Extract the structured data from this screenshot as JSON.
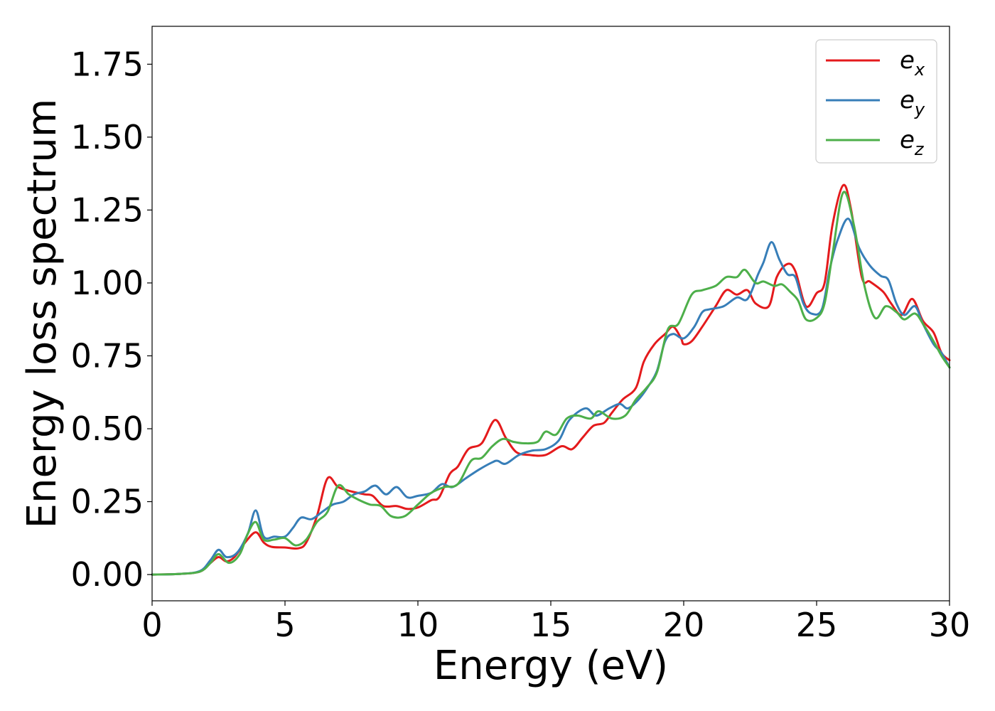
{
  "chart_data": {
    "type": "line",
    "xlabel": "Energy (eV)",
    "ylabel": "Energy loss spectrum",
    "xlim": [
      0,
      30
    ],
    "ylim": [
      -0.09,
      1.88
    ],
    "xticks": [
      0,
      5,
      10,
      15,
      20,
      25,
      30
    ],
    "xtick_labels": [
      "0",
      "5",
      "10",
      "15",
      "20",
      "25",
      "30"
    ],
    "yticks": [
      0.0,
      0.25,
      0.5,
      0.75,
      1.0,
      1.25,
      1.5,
      1.75
    ],
    "ytick_labels": [
      "0.00",
      "0.25",
      "0.50",
      "0.75",
      "1.00",
      "1.25",
      "1.50",
      "1.75"
    ],
    "grid": false,
    "legend_position": "top-right",
    "series": [
      {
        "name": "e_x",
        "label_base": "e",
        "label_sub": "x",
        "color": "#e41a1c",
        "points": [
          [
            0,
            0
          ],
          [
            1,
            0.002
          ],
          [
            1.8,
            0.01
          ],
          [
            2.2,
            0.04
          ],
          [
            2.5,
            0.06
          ],
          [
            2.8,
            0.045
          ],
          [
            3.1,
            0.06
          ],
          [
            3.5,
            0.11
          ],
          [
            3.9,
            0.145
          ],
          [
            4.2,
            0.11
          ],
          [
            4.5,
            0.095
          ],
          [
            5.0,
            0.093
          ],
          [
            5.5,
            0.09
          ],
          [
            5.8,
            0.11
          ],
          [
            6.2,
            0.2
          ],
          [
            6.6,
            0.33
          ],
          [
            7.0,
            0.3
          ],
          [
            7.5,
            0.285
          ],
          [
            8.0,
            0.275
          ],
          [
            8.3,
            0.27
          ],
          [
            8.7,
            0.235
          ],
          [
            9.2,
            0.235
          ],
          [
            9.6,
            0.225
          ],
          [
            10.0,
            0.23
          ],
          [
            10.5,
            0.255
          ],
          [
            10.8,
            0.265
          ],
          [
            11.2,
            0.345
          ],
          [
            11.5,
            0.37
          ],
          [
            11.9,
            0.43
          ],
          [
            12.4,
            0.45
          ],
          [
            12.9,
            0.53
          ],
          [
            13.3,
            0.47
          ],
          [
            13.7,
            0.42
          ],
          [
            14.2,
            0.41
          ],
          [
            14.8,
            0.41
          ],
          [
            15.4,
            0.44
          ],
          [
            15.8,
            0.43
          ],
          [
            16.2,
            0.47
          ],
          [
            16.6,
            0.51
          ],
          [
            17.0,
            0.52
          ],
          [
            17.3,
            0.555
          ],
          [
            17.7,
            0.6
          ],
          [
            18.2,
            0.64
          ],
          [
            18.5,
            0.73
          ],
          [
            18.9,
            0.79
          ],
          [
            19.3,
            0.825
          ],
          [
            19.6,
            0.85
          ],
          [
            19.9,
            0.81
          ],
          [
            20.0,
            0.79
          ],
          [
            20.3,
            0.8
          ],
          [
            20.7,
            0.85
          ],
          [
            21.2,
            0.92
          ],
          [
            21.6,
            0.975
          ],
          [
            22.0,
            0.96
          ],
          [
            22.4,
            0.975
          ],
          [
            22.7,
            0.93
          ],
          [
            23.2,
            0.92
          ],
          [
            23.5,
            1.02
          ],
          [
            23.9,
            1.065
          ],
          [
            24.2,
            1.04
          ],
          [
            24.6,
            0.92
          ],
          [
            25.0,
            0.965
          ],
          [
            25.3,
            1.0
          ],
          [
            25.6,
            1.2
          ],
          [
            26.0,
            1.335
          ],
          [
            26.3,
            1.25
          ],
          [
            26.7,
            1.02
          ],
          [
            27.0,
            1.005
          ],
          [
            27.5,
            0.97
          ],
          [
            27.8,
            0.93
          ],
          [
            28.2,
            0.89
          ],
          [
            28.6,
            0.945
          ],
          [
            29.0,
            0.87
          ],
          [
            29.4,
            0.83
          ],
          [
            29.7,
            0.76
          ],
          [
            30.0,
            0.735
          ]
        ]
      },
      {
        "name": "e_y",
        "label_base": "e",
        "label_sub": "y",
        "color": "#377eb8",
        "points": [
          [
            0,
            0
          ],
          [
            1,
            0.002
          ],
          [
            1.8,
            0.012
          ],
          [
            2.2,
            0.05
          ],
          [
            2.5,
            0.085
          ],
          [
            2.8,
            0.06
          ],
          [
            3.2,
            0.075
          ],
          [
            3.6,
            0.14
          ],
          [
            3.9,
            0.22
          ],
          [
            4.2,
            0.13
          ],
          [
            4.6,
            0.13
          ],
          [
            5.0,
            0.13
          ],
          [
            5.3,
            0.16
          ],
          [
            5.6,
            0.195
          ],
          [
            6.0,
            0.19
          ],
          [
            6.4,
            0.215
          ],
          [
            6.8,
            0.24
          ],
          [
            7.2,
            0.25
          ],
          [
            7.6,
            0.275
          ],
          [
            8.0,
            0.285
          ],
          [
            8.4,
            0.305
          ],
          [
            8.8,
            0.275
          ],
          [
            9.2,
            0.3
          ],
          [
            9.6,
            0.265
          ],
          [
            10.0,
            0.27
          ],
          [
            10.5,
            0.28
          ],
          [
            10.9,
            0.31
          ],
          [
            11.3,
            0.3
          ],
          [
            11.8,
            0.33
          ],
          [
            12.3,
            0.36
          ],
          [
            12.8,
            0.385
          ],
          [
            13.0,
            0.39
          ],
          [
            13.3,
            0.38
          ],
          [
            13.8,
            0.41
          ],
          [
            14.3,
            0.425
          ],
          [
            14.8,
            0.43
          ],
          [
            15.3,
            0.46
          ],
          [
            15.7,
            0.53
          ],
          [
            16.3,
            0.57
          ],
          [
            16.7,
            0.545
          ],
          [
            17.2,
            0.57
          ],
          [
            17.6,
            0.585
          ],
          [
            17.9,
            0.57
          ],
          [
            18.3,
            0.6
          ],
          [
            18.7,
            0.65
          ],
          [
            19.0,
            0.7
          ],
          [
            19.3,
            0.8
          ],
          [
            19.6,
            0.825
          ],
          [
            20.0,
            0.81
          ],
          [
            20.4,
            0.85
          ],
          [
            20.7,
            0.9
          ],
          [
            21.0,
            0.91
          ],
          [
            21.5,
            0.92
          ],
          [
            22.0,
            0.95
          ],
          [
            22.4,
            0.945
          ],
          [
            22.8,
            1.03
          ],
          [
            23.0,
            1.07
          ],
          [
            23.3,
            1.14
          ],
          [
            23.6,
            1.08
          ],
          [
            23.9,
            1.03
          ],
          [
            24.2,
            1.02
          ],
          [
            24.5,
            0.93
          ],
          [
            24.8,
            0.895
          ],
          [
            25.2,
            0.91
          ],
          [
            25.5,
            1.05
          ],
          [
            25.8,
            1.15
          ],
          [
            26.2,
            1.22
          ],
          [
            26.6,
            1.12
          ],
          [
            27.0,
            1.06
          ],
          [
            27.4,
            1.025
          ],
          [
            27.7,
            1.01
          ],
          [
            28.0,
            0.93
          ],
          [
            28.3,
            0.89
          ],
          [
            28.7,
            0.92
          ],
          [
            29.0,
            0.86
          ],
          [
            29.4,
            0.79
          ],
          [
            29.7,
            0.76
          ],
          [
            30.0,
            0.71
          ]
        ]
      },
      {
        "name": "e_z",
        "label_base": "e",
        "label_sub": "z",
        "color": "#4daf4a",
        "points": [
          [
            0,
            0
          ],
          [
            1,
            0.002
          ],
          [
            1.8,
            0.01
          ],
          [
            2.2,
            0.04
          ],
          [
            2.5,
            0.07
          ],
          [
            2.9,
            0.04
          ],
          [
            3.3,
            0.07
          ],
          [
            3.6,
            0.14
          ],
          [
            3.9,
            0.18
          ],
          [
            4.2,
            0.12
          ],
          [
            4.6,
            0.12
          ],
          [
            5.0,
            0.125
          ],
          [
            5.4,
            0.1
          ],
          [
            5.8,
            0.12
          ],
          [
            6.2,
            0.18
          ],
          [
            6.6,
            0.215
          ],
          [
            7.0,
            0.305
          ],
          [
            7.4,
            0.275
          ],
          [
            7.8,
            0.255
          ],
          [
            8.2,
            0.24
          ],
          [
            8.6,
            0.235
          ],
          [
            9.0,
            0.2
          ],
          [
            9.5,
            0.2
          ],
          [
            10.0,
            0.24
          ],
          [
            10.5,
            0.28
          ],
          [
            11.0,
            0.3
          ],
          [
            11.5,
            0.31
          ],
          [
            12.0,
            0.39
          ],
          [
            12.4,
            0.4
          ],
          [
            12.8,
            0.44
          ],
          [
            13.2,
            0.465
          ],
          [
            13.6,
            0.455
          ],
          [
            14.0,
            0.45
          ],
          [
            14.5,
            0.455
          ],
          [
            14.8,
            0.49
          ],
          [
            15.2,
            0.48
          ],
          [
            15.6,
            0.535
          ],
          [
            16.0,
            0.545
          ],
          [
            16.5,
            0.535
          ],
          [
            16.8,
            0.56
          ],
          [
            17.3,
            0.535
          ],
          [
            17.8,
            0.545
          ],
          [
            18.2,
            0.6
          ],
          [
            18.6,
            0.64
          ],
          [
            19.0,
            0.695
          ],
          [
            19.4,
            0.84
          ],
          [
            19.8,
            0.86
          ],
          [
            20.3,
            0.96
          ],
          [
            20.7,
            0.975
          ],
          [
            21.2,
            0.99
          ],
          [
            21.6,
            1.02
          ],
          [
            22.0,
            1.02
          ],
          [
            22.3,
            1.045
          ],
          [
            22.7,
            1.0
          ],
          [
            23.0,
            1.005
          ],
          [
            23.4,
            0.99
          ],
          [
            23.7,
            0.995
          ],
          [
            24.0,
            0.97
          ],
          [
            24.3,
            0.94
          ],
          [
            24.6,
            0.875
          ],
          [
            25.0,
            0.88
          ],
          [
            25.3,
            0.93
          ],
          [
            25.6,
            1.1
          ],
          [
            26.0,
            1.31
          ],
          [
            26.4,
            1.2
          ],
          [
            26.8,
            0.99
          ],
          [
            27.2,
            0.88
          ],
          [
            27.6,
            0.92
          ],
          [
            28.0,
            0.9
          ],
          [
            28.3,
            0.875
          ],
          [
            28.7,
            0.895
          ],
          [
            29.0,
            0.86
          ],
          [
            29.4,
            0.8
          ],
          [
            29.7,
            0.75
          ],
          [
            30.0,
            0.71
          ]
        ]
      }
    ]
  }
}
